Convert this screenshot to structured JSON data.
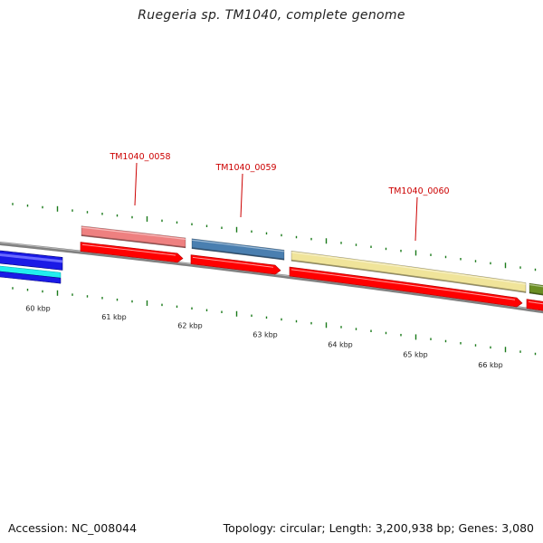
{
  "title": "Ruegeria sp. TM1040, complete genome",
  "footer": {
    "accession": "Accession: NC_008044",
    "summary": "Topology: circular; Length: 3,200,938 bp; Genes: 3,080"
  },
  "colors": {
    "backbone": "#808080",
    "tick": "#1a7a1a",
    "label": "#cc0000",
    "leader": "#cc0000",
    "orf_red": "#ff0000",
    "gene_0058": "#ee8080",
    "gene_0059": "#4a7fb0",
    "gene_0060": "#f0e49a",
    "gene_next": "#6b8e23",
    "left_blue": "#1a1ae6",
    "left_cyan": "#22eeee"
  },
  "scale_labels": [
    "60 kbp",
    "61 kbp",
    "62 kbp",
    "63 kbp",
    "64 kbp",
    "65 kbp",
    "66 kbp"
  ],
  "gene_labels": [
    "TM1040_0058",
    "TM1040_0059",
    "TM1040_0060"
  ]
}
